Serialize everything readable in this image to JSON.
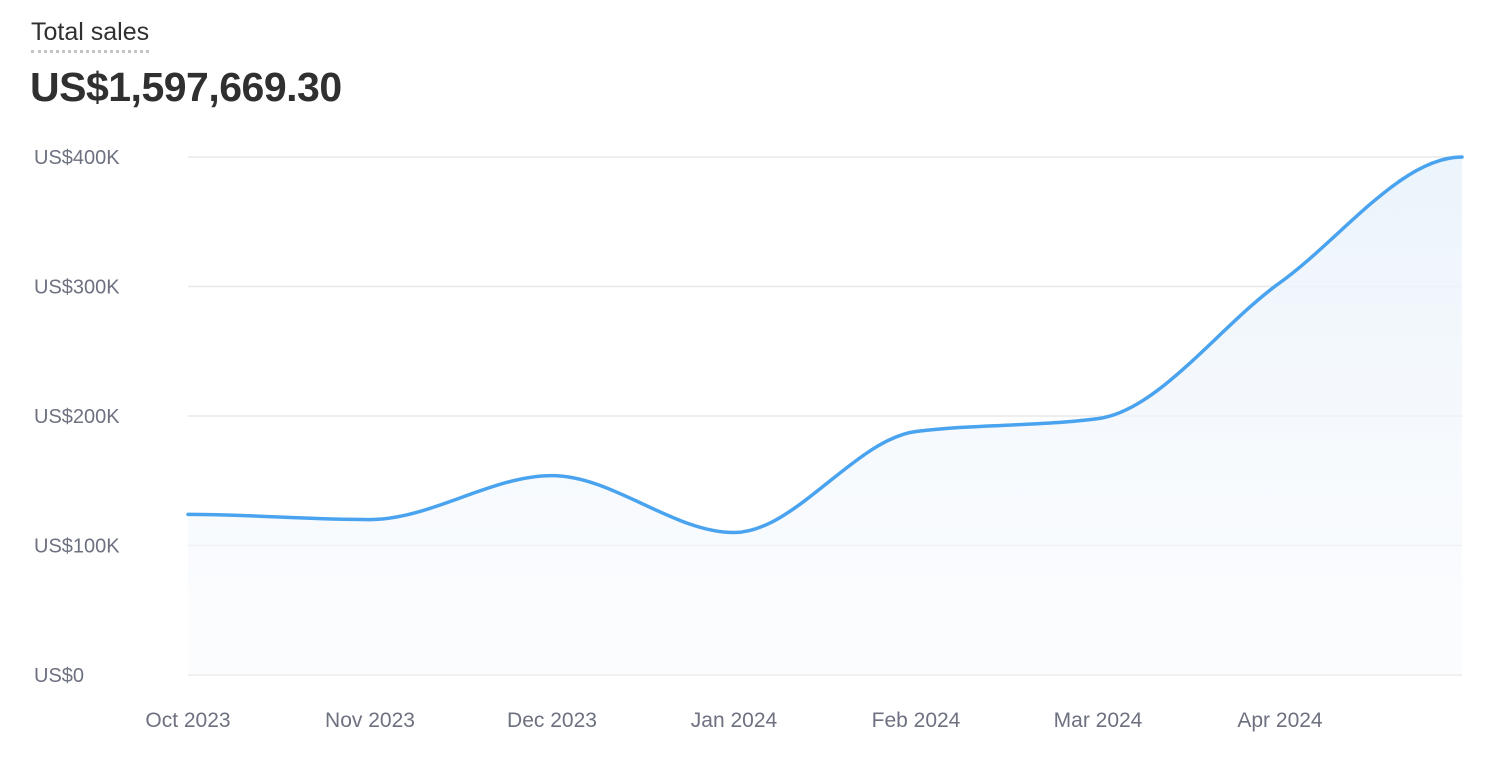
{
  "header": {
    "title": "Total sales",
    "total": "US$1,597,669.30"
  },
  "colors": {
    "line": "#4aa3ee",
    "grid": "#e8e8ea",
    "fill": "#eef5fc"
  },
  "chart_data": {
    "type": "area",
    "title": "Total sales",
    "xlabel": "",
    "ylabel": "",
    "categories": [
      "Oct 2023",
      "Nov 2023",
      "Dec 2023",
      "Jan 2024",
      "Feb 2024",
      "Mar 2024",
      "Apr 2024",
      ""
    ],
    "values": [
      124000,
      120000,
      154000,
      110000,
      188000,
      198000,
      303000,
      400000
    ],
    "ylim": [
      0,
      400000
    ],
    "y_ticks": [
      {
        "value": 0,
        "label": "US$0"
      },
      {
        "value": 100000,
        "label": "US$100K"
      },
      {
        "value": 200000,
        "label": "US$200K"
      },
      {
        "value": 300000,
        "label": "US$300K"
      },
      {
        "value": 400000,
        "label": "US$400K"
      }
    ],
    "grid": true,
    "interpolation": "smooth"
  }
}
